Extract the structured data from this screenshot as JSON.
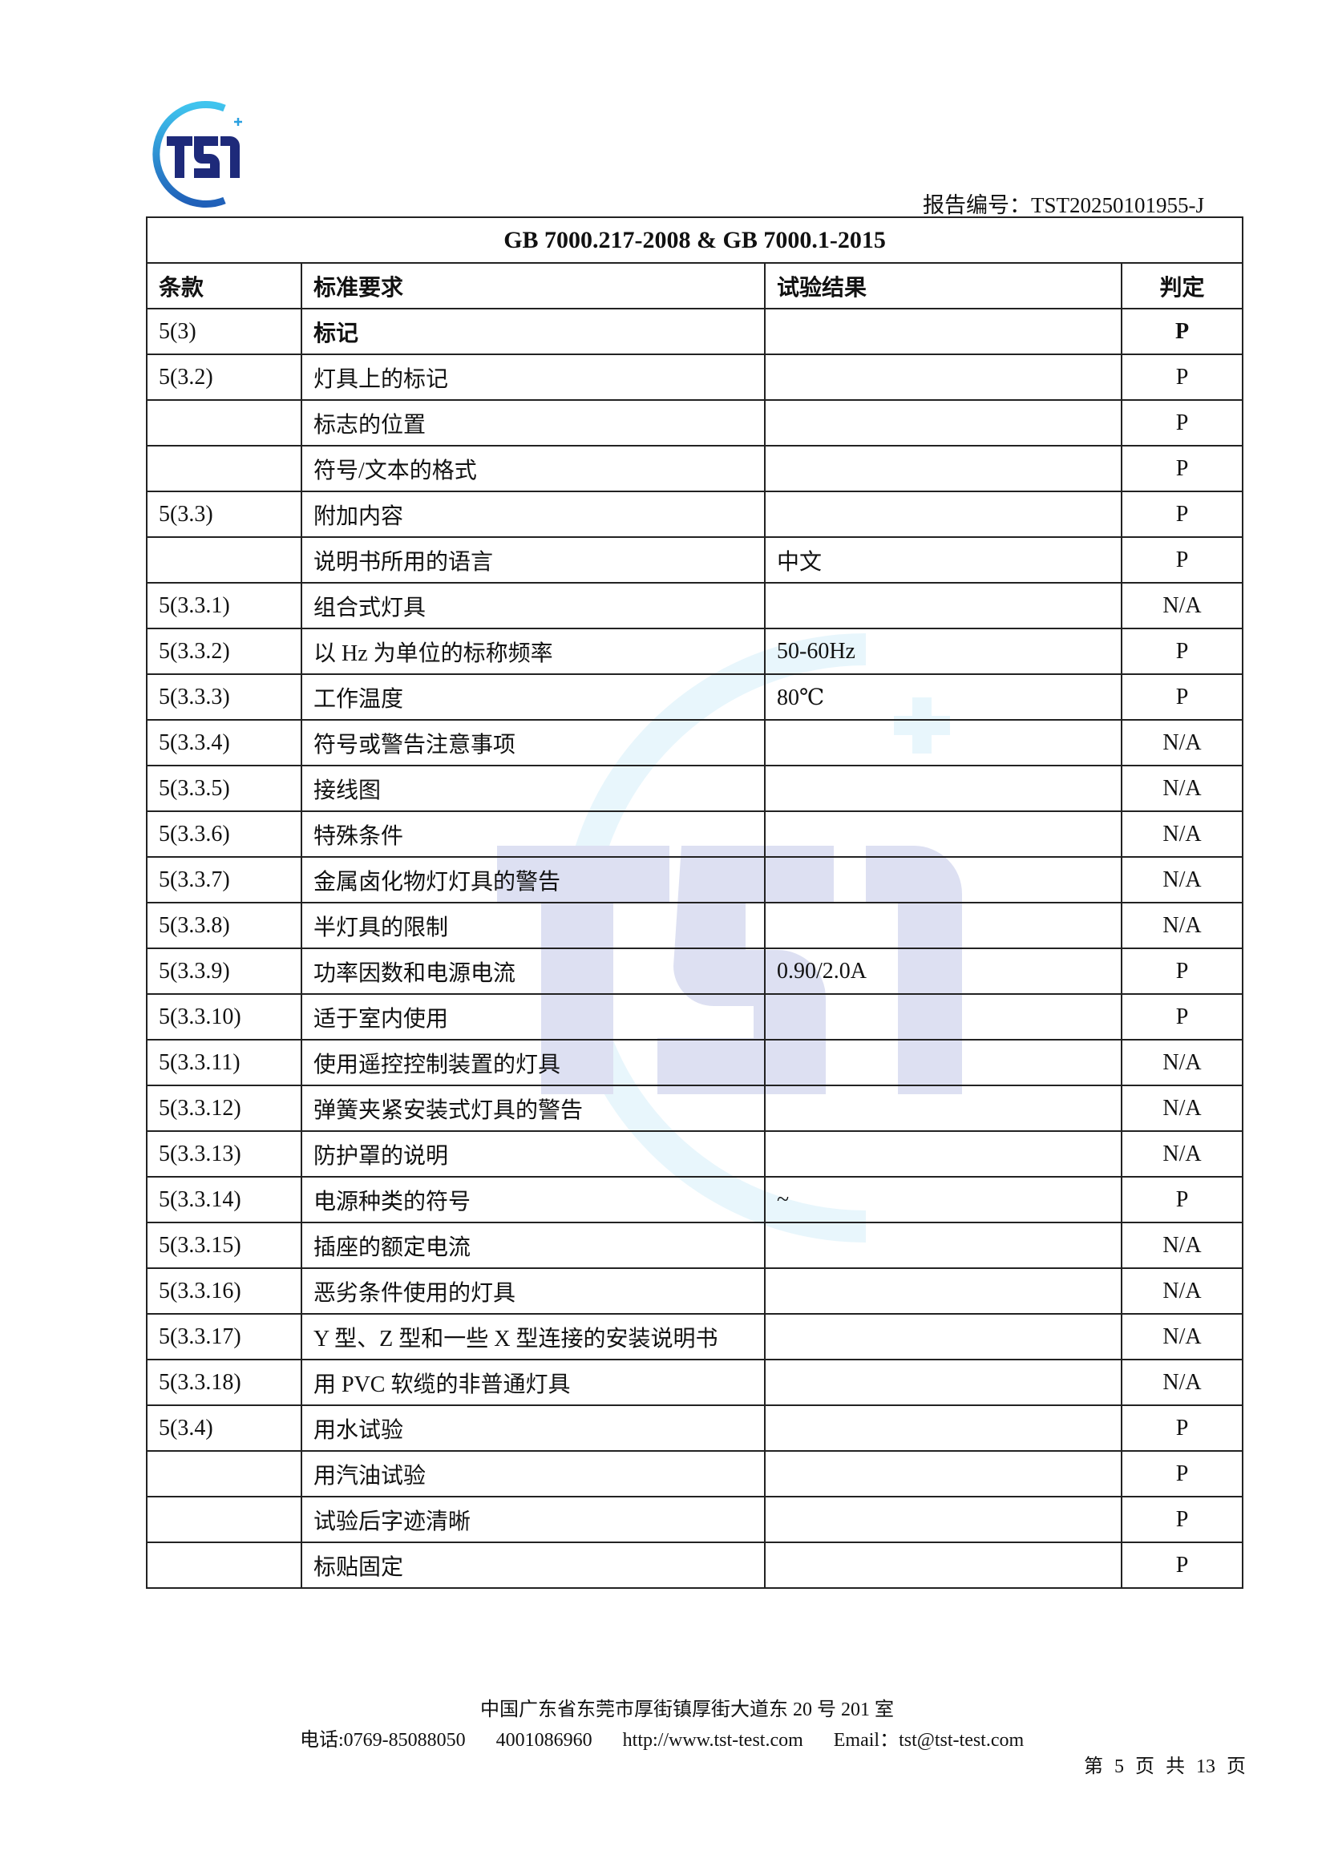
{
  "header": {
    "logo_text": "TST",
    "report_number": "报告编号：TST20250101955-J"
  },
  "table": {
    "title": "GB 7000.217-2008 & GB 7000.1-2015",
    "columns": [
      "条款",
      "标准要求",
      "试验结果",
      "判定"
    ],
    "rows": [
      {
        "clause": "5(3)",
        "requirement": "标记",
        "result": "",
        "verdict": "P",
        "bold": true
      },
      {
        "clause": "5(3.2)",
        "requirement": "灯具上的标记",
        "result": "",
        "verdict": "P"
      },
      {
        "clause": "",
        "requirement": "标志的位置",
        "result": "",
        "verdict": "P"
      },
      {
        "clause": "",
        "requirement": "符号/文本的格式",
        "result": "",
        "verdict": "P"
      },
      {
        "clause": "5(3.3)",
        "requirement": "附加内容",
        "result": "",
        "verdict": "P"
      },
      {
        "clause": "",
        "requirement": "说明书所用的语言",
        "result": "中文",
        "verdict": "P"
      },
      {
        "clause": "5(3.3.1)",
        "requirement": "组合式灯具",
        "result": "",
        "verdict": "N/A"
      },
      {
        "clause": "5(3.3.2)",
        "requirement": "以 Hz 为单位的标称频率",
        "result": "50-60Hz",
        "verdict": "P"
      },
      {
        "clause": "5(3.3.3)",
        "requirement": "工作温度",
        "result": "80℃",
        "verdict": "P"
      },
      {
        "clause": "5(3.3.4)",
        "requirement": "符号或警告注意事项",
        "result": "",
        "verdict": "N/A"
      },
      {
        "clause": "5(3.3.5)",
        "requirement": "接线图",
        "result": "",
        "verdict": "N/A"
      },
      {
        "clause": "5(3.3.6)",
        "requirement": "特殊条件",
        "result": "",
        "verdict": "N/A"
      },
      {
        "clause": "5(3.3.7)",
        "requirement": "金属卤化物灯灯具的警告",
        "result": "",
        "verdict": "N/A"
      },
      {
        "clause": "5(3.3.8)",
        "requirement": "半灯具的限制",
        "result": "",
        "verdict": "N/A"
      },
      {
        "clause": "5(3.3.9)",
        "requirement": "功率因数和电源电流",
        "result": "0.90/2.0A",
        "verdict": "P"
      },
      {
        "clause": "5(3.3.10)",
        "requirement": "适于室内使用",
        "result": "",
        "verdict": "P"
      },
      {
        "clause": "5(3.3.11)",
        "requirement": "使用遥控控制装置的灯具",
        "result": "",
        "verdict": "N/A"
      },
      {
        "clause": "5(3.3.12)",
        "requirement": "弹簧夹紧安装式灯具的警告",
        "result": "",
        "verdict": "N/A"
      },
      {
        "clause": "5(3.3.13)",
        "requirement": "防护罩的说明",
        "result": "",
        "verdict": "N/A"
      },
      {
        "clause": "5(3.3.14)",
        "requirement": "电源种类的符号",
        "result": "~",
        "verdict": "P"
      },
      {
        "clause": "5(3.3.15)",
        "requirement": "插座的额定电流",
        "result": "",
        "verdict": "N/A"
      },
      {
        "clause": "5(3.3.16)",
        "requirement": "恶劣条件使用的灯具",
        "result": "",
        "verdict": "N/A"
      },
      {
        "clause": "5(3.3.17)",
        "requirement": "Y 型、Z 型和一些 X 型连接的安装说明书",
        "result": "",
        "verdict": "N/A"
      },
      {
        "clause": "5(3.3.18)",
        "requirement": "用 PVC 软缆的非普通灯具",
        "result": "",
        "verdict": "N/A"
      },
      {
        "clause": "5(3.4)",
        "requirement": "用水试验",
        "result": "",
        "verdict": "P"
      },
      {
        "clause": "",
        "requirement": "用汽油试验",
        "result": "",
        "verdict": "P"
      },
      {
        "clause": "",
        "requirement": "试验后字迹清晰",
        "result": "",
        "verdict": "P"
      },
      {
        "clause": "",
        "requirement": "标贴固定",
        "result": "",
        "verdict": "P"
      }
    ]
  },
  "footer": {
    "address": "中国广东省东莞市厚街镇厚街大道东 20 号 201 室",
    "phone": "电话:0769-85088050",
    "hotline": "4001086960",
    "website": "http://www.tst-test.com",
    "email": "Email：tst@tst-test.com",
    "page": "第 5 页 共 13 页"
  },
  "colors": {
    "logo_navy": "#1e2a7a",
    "logo_cyan": "#33b6e8"
  }
}
